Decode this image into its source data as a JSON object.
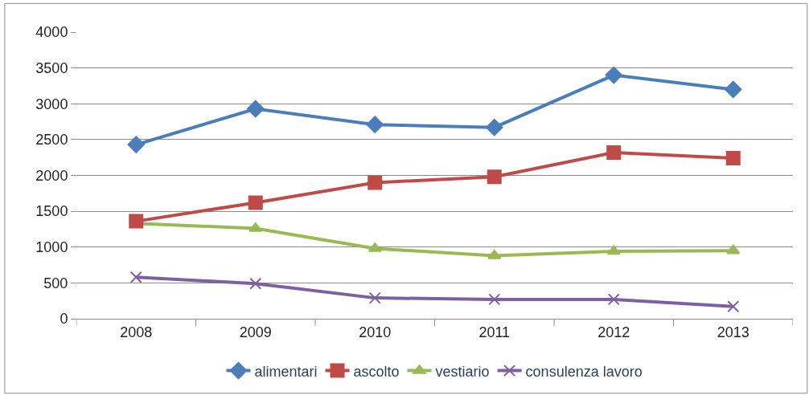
{
  "chart_data": {
    "type": "line",
    "categories": [
      "2008",
      "2009",
      "2010",
      "2011",
      "2012",
      "2013"
    ],
    "series": [
      {
        "name": "alimentari",
        "color": "#4a7ebb",
        "marker": "diamond",
        "values": [
          2430,
          2930,
          2710,
          2670,
          3400,
          3200
        ]
      },
      {
        "name": "ascolto",
        "color": "#be4b48",
        "marker": "square",
        "values": [
          1360,
          1620,
          1900,
          1980,
          2320,
          2240
        ]
      },
      {
        "name": "vestiario",
        "color": "#98b954",
        "marker": "triangle",
        "values": [
          1330,
          1260,
          980,
          880,
          940,
          950
        ]
      },
      {
        "name": "consulenza lavoro",
        "color": "#7d60a0",
        "marker": "cross",
        "values": [
          580,
          490,
          290,
          270,
          270,
          170
        ]
      }
    ],
    "ylim": [
      0,
      4000
    ],
    "yticks": [
      0,
      500,
      1000,
      1500,
      2000,
      2500,
      3000,
      3500,
      4000
    ],
    "grid": "y",
    "legend": "bottom",
    "line_style": "solid"
  }
}
